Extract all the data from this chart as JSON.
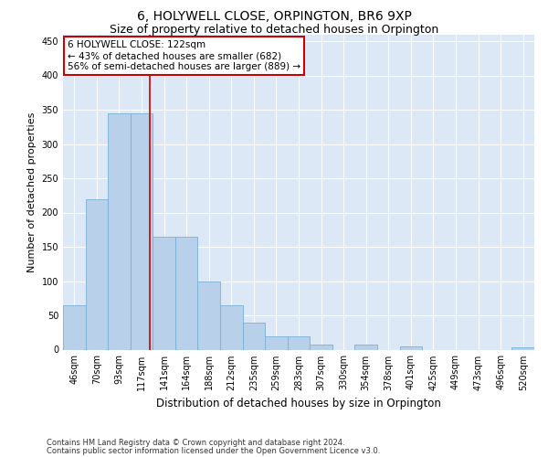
{
  "title": "6, HOLYWELL CLOSE, ORPINGTON, BR6 9XP",
  "subtitle": "Size of property relative to detached houses in Orpington",
  "xlabel": "Distribution of detached houses by size in Orpington",
  "ylabel": "Number of detached properties",
  "categories": [
    "46sqm",
    "70sqm",
    "93sqm",
    "117sqm",
    "141sqm",
    "164sqm",
    "188sqm",
    "212sqm",
    "235sqm",
    "259sqm",
    "283sqm",
    "307sqm",
    "330sqm",
    "354sqm",
    "378sqm",
    "401sqm",
    "425sqm",
    "449sqm",
    "473sqm",
    "496sqm",
    "520sqm"
  ],
  "values": [
    65,
    220,
    345,
    345,
    165,
    165,
    100,
    65,
    40,
    20,
    20,
    8,
    0,
    8,
    0,
    5,
    0,
    0,
    0,
    0,
    3
  ],
  "bar_color": "#b8d0ea",
  "bar_edge_color": "#7aafd4",
  "vline_color": "#cc0000",
  "vline_x": 3.35,
  "annotation_text": "6 HOLYWELL CLOSE: 122sqm\n← 43% of detached houses are smaller (682)\n56% of semi-detached houses are larger (889) →",
  "annotation_box_color": "#ffffff",
  "annotation_box_edge": "#cc0000",
  "ylim": [
    0,
    460
  ],
  "yticks": [
    0,
    50,
    100,
    150,
    200,
    250,
    300,
    350,
    400,
    450
  ],
  "background_color": "#dce8f5",
  "footer_line1": "Contains HM Land Registry data © Crown copyright and database right 2024.",
  "footer_line2": "Contains public sector information licensed under the Open Government Licence v3.0.",
  "title_fontsize": 10,
  "subtitle_fontsize": 9,
  "tick_fontsize": 7,
  "ylabel_fontsize": 8,
  "xlabel_fontsize": 8.5
}
